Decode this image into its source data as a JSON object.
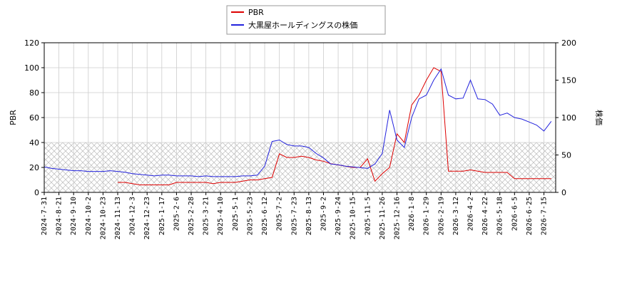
{
  "chart_data": {
    "type": "line",
    "x": [
      "2024-7-31",
      null,
      "2024-8-21",
      null,
      "2024-9-10",
      null,
      "2024-10-2",
      null,
      "2024-10-23",
      null,
      "2024-11-13",
      null,
      "2024-12-3",
      null,
      "2024-12-23",
      null,
      "2025-1-17",
      null,
      "2025-2-6",
      null,
      "2025-2-28",
      null,
      "2025-3-21",
      null,
      "2025-4-10",
      null,
      "2025-5-1",
      null,
      "2025-5-23",
      null,
      "2025-6-12",
      null,
      "2025-7-2",
      null,
      "2025-7-23",
      null,
      "2025-8-13",
      null,
      "2025-9-2",
      null,
      "2025-9-24",
      null,
      "2025-10-15",
      null,
      "2025-11-5",
      null,
      "2025-11-26",
      null,
      "2025-12-16",
      null,
      "2026-1-8",
      null,
      "2026-1-29",
      null,
      "2026-2-19",
      null,
      "2026-3-12",
      null,
      "2026-4-2",
      null,
      "2026-4-22",
      null,
      "2026-5-18",
      null,
      "2026-6-5",
      null,
      "2026-6-25",
      null,
      "2026-7-15",
      null
    ],
    "series": [
      {
        "name": "PBR",
        "color": "#dd0000",
        "axis": "y",
        "values": [
          null,
          null,
          null,
          null,
          null,
          null,
          null,
          null,
          null,
          null,
          8,
          8,
          7,
          6,
          6,
          6,
          6,
          6,
          8,
          8,
          8,
          8,
          8,
          7,
          8,
          8,
          8,
          9,
          10,
          10,
          11,
          12,
          31,
          28,
          28,
          29,
          28,
          26,
          25,
          23,
          22,
          21,
          20,
          20,
          27,
          9,
          15,
          20,
          47,
          40,
          70,
          78,
          90,
          100,
          97,
          17,
          17,
          17,
          18,
          17,
          16,
          16,
          16,
          16,
          11,
          11,
          11,
          11,
          11,
          11
        ]
      },
      {
        "name": "大黒屋ホールディングスの株価",
        "color": "#2222dd",
        "axis": "y2",
        "values": [
          34,
          32,
          31,
          30,
          29,
          29,
          28,
          28,
          28,
          29,
          28,
          27,
          25,
          24,
          23,
          22,
          23,
          23,
          22,
          22,
          22,
          21,
          22,
          21,
          21,
          21,
          21,
          22,
          22,
          23,
          35,
          68,
          70,
          64,
          62,
          62,
          60,
          52,
          46,
          38,
          37,
          35,
          34,
          33,
          32,
          38,
          52,
          110,
          70,
          60,
          100,
          125,
          130,
          150,
          165,
          130,
          125,
          126,
          150,
          125,
          124,
          118,
          103,
          106,
          100,
          98,
          94,
          90,
          82,
          95
        ]
      }
    ],
    "ylabel": "PBR",
    "y2label": "株価",
    "ylim": [
      0,
      120
    ],
    "yticks": [
      0,
      20,
      40,
      60,
      80,
      100,
      120
    ],
    "y2lim": [
      0,
      200
    ],
    "y2ticks": [
      0,
      50,
      100,
      150,
      200
    ],
    "hatched_band": [
      0,
      40
    ],
    "grid": true,
    "legend": "top"
  }
}
